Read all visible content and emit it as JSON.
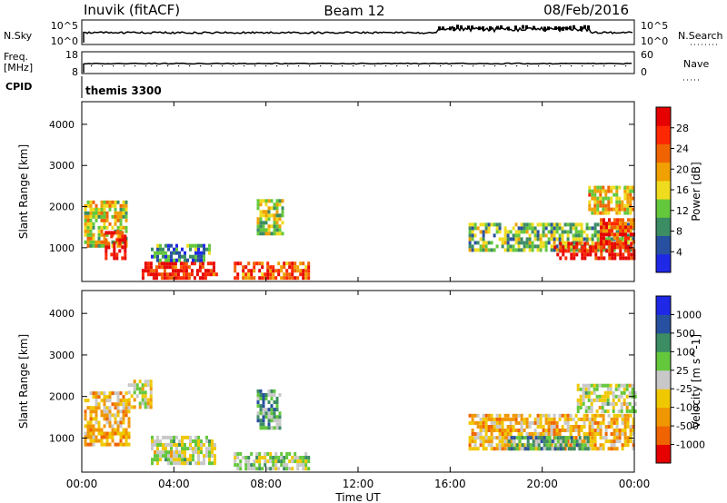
{
  "header": {
    "station": "Inuvik (fitACF)",
    "beam": "Beam 12",
    "date": "08/Feb/2016"
  },
  "strip_panels": {
    "nsky_label": "N.Sky",
    "nsky_ticks": [
      "10^5",
      "10^0"
    ],
    "nsearch_label": "N.Search",
    "nsearch_ticks": [
      "10^5",
      "10^0"
    ],
    "freq_label": "Freq.",
    "freq_unit": "[MHz]",
    "freq_ticks": [
      "18",
      "8"
    ],
    "nave_label": "Nave",
    "nave_ticks": [
      "60",
      "0"
    ],
    "cpid_label": "CPID",
    "cpid_value": "themis 3300"
  },
  "colors": {
    "power_scale": [
      "#1e28e6",
      "#2850a0",
      "#3c8c64",
      "#64c83c",
      "#f0dc1e",
      "#f0a000",
      "#f06400",
      "#ff2800",
      "#e60000"
    ],
    "velocity_scale": [
      "#e60000",
      "#f06400",
      "#f09600",
      "#f0c800",
      "#c8c8c8",
      "#64c83c",
      "#3c8c64",
      "#2850a0",
      "#1e28e6"
    ]
  },
  "chart_data": [
    {
      "type": "heatmap",
      "title": "",
      "ylabel": "Slant Range [km]",
      "ylim": [
        180,
        4550
      ],
      "xlim": [
        0,
        24
      ],
      "yticks": [
        "1000",
        "2000",
        "3000",
        "4000"
      ],
      "colorbar_label": "Power [dB]",
      "colorbar_ticks": [
        "28",
        "24",
        "20",
        "16",
        "12",
        "8",
        "4"
      ],
      "colorbar_range": [
        0,
        32
      ],
      "regions": [
        {
          "t0": 0.1,
          "t1": 1.9,
          "r0": 1000,
          "r1": 2100,
          "value": 16
        },
        {
          "t0": 1.0,
          "t1": 1.9,
          "r0": 700,
          "r1": 1400,
          "value": 28
        },
        {
          "t0": 2.6,
          "t1": 5.8,
          "r0": 220,
          "r1": 650,
          "value": 28
        },
        {
          "t0": 3.0,
          "t1": 5.6,
          "r0": 650,
          "r1": 1050,
          "value": 8
        },
        {
          "t0": 6.6,
          "t1": 9.8,
          "r0": 220,
          "r1": 600,
          "value": 24
        },
        {
          "t0": 7.6,
          "t1": 8.7,
          "r0": 1300,
          "r1": 2100,
          "value": 14
        },
        {
          "t0": 16.8,
          "t1": 24.0,
          "r0": 900,
          "r1": 1600,
          "value": 12
        },
        {
          "t0": 20.5,
          "t1": 24.0,
          "r0": 700,
          "r1": 1100,
          "value": 28
        },
        {
          "t0": 22.5,
          "t1": 24.0,
          "r0": 1100,
          "r1": 1700,
          "value": 26
        },
        {
          "t0": 22.0,
          "t1": 24.0,
          "r0": 1800,
          "r1": 2500,
          "value": 18
        }
      ]
    },
    {
      "type": "heatmap",
      "title": "",
      "ylabel": "Slant Range [km]",
      "xlabel": "Time UT",
      "ylim": [
        180,
        4550
      ],
      "xlim": [
        0,
        24
      ],
      "xticks": [
        "00:00",
        "04:00",
        "08:00",
        "12:00",
        "16:00",
        "20:00",
        "00:00"
      ],
      "yticks": [
        "1000",
        "2000",
        "3000",
        "4000"
      ],
      "colorbar_label": "Velocity [m s^-1]",
      "colorbar_ticks": [
        "1000",
        "500",
        "100",
        "25",
        "-25",
        "-100",
        "-500",
        "-1000"
      ],
      "colorbar_range": [
        -1000,
        1000
      ],
      "regions": [
        {
          "t0": 0.1,
          "t1": 2.0,
          "r0": 800,
          "r1": 2100,
          "value": -300
        },
        {
          "t0": 2.0,
          "t1": 3.0,
          "r0": 1700,
          "r1": 2400,
          "value": -150
        },
        {
          "t0": 3.0,
          "t1": 5.8,
          "r0": 350,
          "r1": 1050,
          "value": 0
        },
        {
          "t0": 6.6,
          "t1": 9.8,
          "r0": 220,
          "r1": 600,
          "value": 120
        },
        {
          "t0": 7.6,
          "t1": 8.6,
          "r0": 1200,
          "r1": 2100,
          "value": 300
        },
        {
          "t0": 16.8,
          "t1": 24.0,
          "r0": 700,
          "r1": 1500,
          "value": -300
        },
        {
          "t0": 18.5,
          "t1": 22.0,
          "r0": 700,
          "r1": 1000,
          "value": 300
        },
        {
          "t0": 21.5,
          "t1": 24.0,
          "r0": 1600,
          "r1": 2300,
          "value": 0
        }
      ]
    }
  ]
}
